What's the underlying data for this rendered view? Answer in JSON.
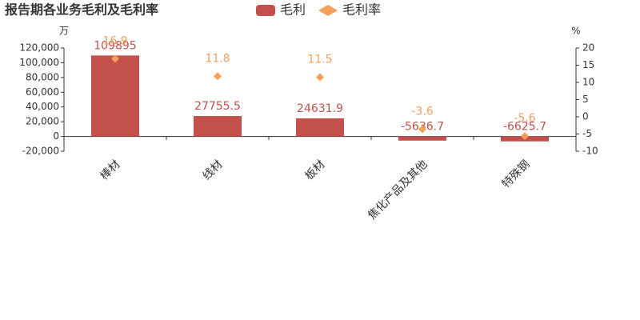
{
  "chart_data": {
    "type": "bar",
    "title": "报告期各业务毛利及毛利率",
    "ylabel": "万",
    "y2label": "%",
    "categories": [
      "棒材",
      "线材",
      "板材",
      "焦化产品及其他",
      "特殊钢"
    ],
    "series": [
      {
        "name": "毛利",
        "color": "#c4504c",
        "values": [
          109895,
          27755.5,
          24631.9,
          -5636.7,
          -6625.7
        ]
      },
      {
        "name": "毛利率",
        "color": "#f5a05a",
        "axis": "y2",
        "marker": "diamond",
        "values": [
          16.9,
          11.8,
          11.5,
          -3.6,
          -5.6
        ]
      }
    ],
    "ylim": [
      -20000,
      120000
    ],
    "yticks": [
      {
        "value": -20000,
        "label": "-20,000"
      },
      0,
      {
        "value": 20000,
        "label": "20,000"
      },
      {
        "value": 40000,
        "label": "40,000"
      },
      {
        "value": 60000,
        "label": "60,000"
      },
      {
        "value": 80000,
        "label": "80,000"
      },
      {
        "value": 100000,
        "label": "100,000"
      },
      {
        "value": 120000,
        "label": "120,000"
      }
    ],
    "y2lim": [
      -10,
      20
    ],
    "y2ticks": [
      -10,
      -5,
      0,
      5,
      10,
      15,
      20
    ]
  }
}
